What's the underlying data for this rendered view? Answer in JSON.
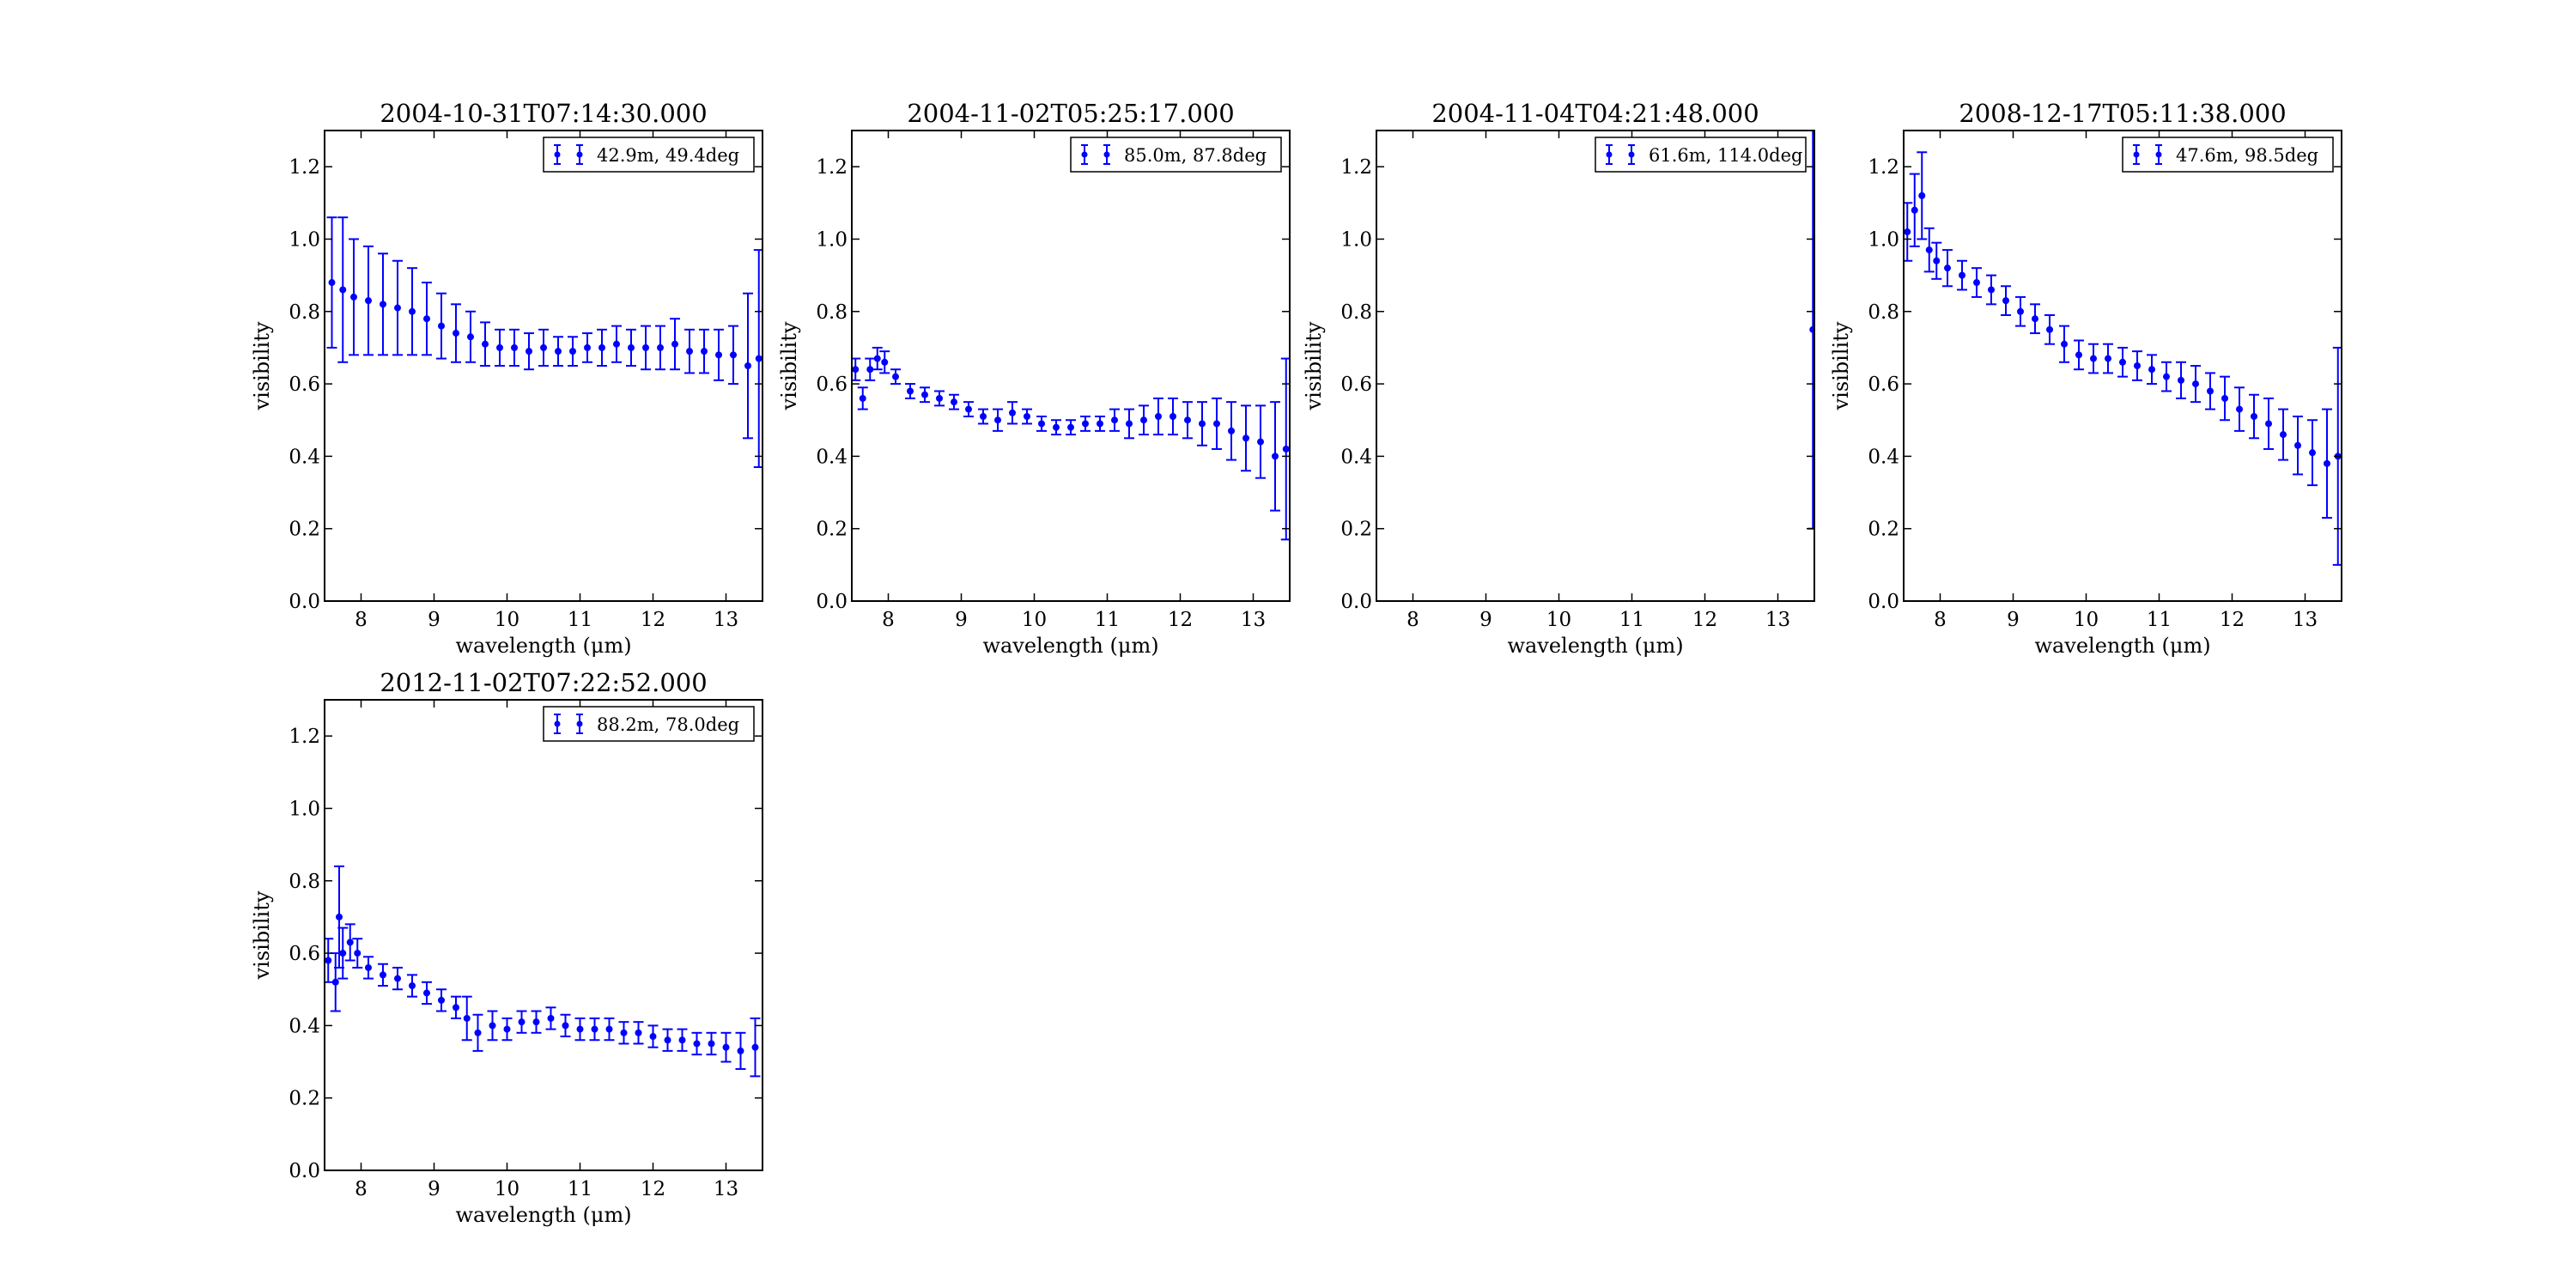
{
  "figure": {
    "background": "#ffffff"
  },
  "chart_data": [
    {
      "type": "scatter",
      "title": "2004-10-31T07:14:30.000",
      "xlabel": "wavelength (μm)",
      "ylabel": "visibility",
      "xlim": [
        7.5,
        13.5
      ],
      "ylim": [
        0.0,
        1.3
      ],
      "xticks": [
        "8",
        "9",
        "10",
        "11",
        "12",
        "13"
      ],
      "yticks": [
        "0.0",
        "0.2",
        "0.4",
        "0.6",
        "0.8",
        "1.0",
        "1.2"
      ],
      "legend": {
        "label": "42.9m, 49.4deg",
        "position": "top-right"
      },
      "color": "#0000ff",
      "series": [
        {
          "x": [
            7.6,
            7.75,
            7.9,
            8.1,
            8.3,
            8.5,
            8.7,
            8.9,
            9.1,
            9.3,
            9.5,
            9.7,
            9.9,
            10.1,
            10.3,
            10.5,
            10.7,
            10.9,
            11.1,
            11.3,
            11.5,
            11.7,
            11.9,
            12.1,
            12.3,
            12.5,
            12.7,
            12.9,
            13.1,
            13.3,
            13.45
          ],
          "y": [
            0.88,
            0.86,
            0.84,
            0.83,
            0.82,
            0.81,
            0.8,
            0.78,
            0.76,
            0.74,
            0.73,
            0.71,
            0.7,
            0.7,
            0.69,
            0.7,
            0.69,
            0.69,
            0.7,
            0.7,
            0.71,
            0.7,
            0.7,
            0.7,
            0.71,
            0.69,
            0.69,
            0.68,
            0.68,
            0.65,
            0.67
          ],
          "yerr": [
            0.18,
            0.2,
            0.16,
            0.15,
            0.14,
            0.13,
            0.12,
            0.1,
            0.09,
            0.08,
            0.07,
            0.06,
            0.05,
            0.05,
            0.05,
            0.05,
            0.04,
            0.04,
            0.04,
            0.05,
            0.05,
            0.05,
            0.06,
            0.06,
            0.07,
            0.06,
            0.06,
            0.07,
            0.08,
            0.2,
            0.3
          ]
        }
      ]
    },
    {
      "type": "scatter",
      "title": "2004-11-02T05:25:17.000",
      "xlabel": "wavelength (μm)",
      "ylabel": "visibility",
      "xlim": [
        7.5,
        13.5
      ],
      "ylim": [
        0.0,
        1.3
      ],
      "xticks": [
        "8",
        "9",
        "10",
        "11",
        "12",
        "13"
      ],
      "yticks": [
        "0.0",
        "0.2",
        "0.4",
        "0.6",
        "0.8",
        "1.0",
        "1.2"
      ],
      "legend": {
        "label": "85.0m, 87.8deg",
        "position": "top-right"
      },
      "color": "#0000ff",
      "series": [
        {
          "x": [
            7.55,
            7.65,
            7.75,
            7.85,
            7.95,
            8.1,
            8.3,
            8.5,
            8.7,
            8.9,
            9.1,
            9.3,
            9.5,
            9.7,
            9.9,
            10.1,
            10.3,
            10.5,
            10.7,
            10.9,
            11.1,
            11.3,
            11.5,
            11.7,
            11.9,
            12.1,
            12.3,
            12.5,
            12.7,
            12.9,
            13.1,
            13.3,
            13.45
          ],
          "y": [
            0.64,
            0.56,
            0.64,
            0.67,
            0.66,
            0.62,
            0.58,
            0.57,
            0.56,
            0.55,
            0.53,
            0.51,
            0.5,
            0.52,
            0.51,
            0.49,
            0.48,
            0.48,
            0.49,
            0.49,
            0.5,
            0.49,
            0.5,
            0.51,
            0.51,
            0.5,
            0.49,
            0.49,
            0.47,
            0.45,
            0.44,
            0.4,
            0.42
          ],
          "yerr": [
            0.03,
            0.03,
            0.03,
            0.03,
            0.03,
            0.02,
            0.02,
            0.02,
            0.02,
            0.02,
            0.02,
            0.02,
            0.03,
            0.03,
            0.02,
            0.02,
            0.02,
            0.02,
            0.02,
            0.02,
            0.03,
            0.04,
            0.04,
            0.05,
            0.05,
            0.05,
            0.06,
            0.07,
            0.08,
            0.09,
            0.1,
            0.15,
            0.25
          ]
        }
      ]
    },
    {
      "type": "scatter",
      "title": "2004-11-04T04:21:48.000",
      "xlabel": "wavelength (μm)",
      "ylabel": "visibility",
      "xlim": [
        7.5,
        13.5
      ],
      "ylim": [
        0.0,
        1.3
      ],
      "xticks": [
        "8",
        "9",
        "10",
        "11",
        "12",
        "13"
      ],
      "yticks": [
        "0.0",
        "0.2",
        "0.4",
        "0.6",
        "0.8",
        "1.0",
        "1.2"
      ],
      "legend": {
        "label": "61.6m, 114.0deg",
        "position": "top-right"
      },
      "color": "#0000ff",
      "series": [
        {
          "x": [
            13.48
          ],
          "y": [
            0.75
          ],
          "yerr": [
            0.55
          ]
        }
      ]
    },
    {
      "type": "scatter",
      "title": "2008-12-17T05:11:38.000",
      "xlabel": "wavelength (μm)",
      "ylabel": "visibility",
      "xlim": [
        7.5,
        13.5
      ],
      "ylim": [
        0.0,
        1.3
      ],
      "xticks": [
        "8",
        "9",
        "10",
        "11",
        "12",
        "13"
      ],
      "yticks": [
        "0.0",
        "0.2",
        "0.4",
        "0.6",
        "0.8",
        "1.0",
        "1.2"
      ],
      "legend": {
        "label": "47.6m, 98.5deg",
        "position": "top-right"
      },
      "color": "#0000ff",
      "series": [
        {
          "x": [
            7.55,
            7.65,
            7.75,
            7.85,
            7.95,
            8.1,
            8.3,
            8.5,
            8.7,
            8.9,
            9.1,
            9.3,
            9.5,
            9.7,
            9.9,
            10.1,
            10.3,
            10.5,
            10.7,
            10.9,
            11.1,
            11.3,
            11.5,
            11.7,
            11.9,
            12.1,
            12.3,
            12.5,
            12.7,
            12.9,
            13.1,
            13.3,
            13.45
          ],
          "y": [
            1.02,
            1.08,
            1.12,
            0.97,
            0.94,
            0.92,
            0.9,
            0.88,
            0.86,
            0.83,
            0.8,
            0.78,
            0.75,
            0.71,
            0.68,
            0.67,
            0.67,
            0.66,
            0.65,
            0.64,
            0.62,
            0.61,
            0.6,
            0.58,
            0.56,
            0.53,
            0.51,
            0.49,
            0.46,
            0.43,
            0.41,
            0.38,
            0.4
          ],
          "yerr": [
            0.08,
            0.1,
            0.12,
            0.06,
            0.05,
            0.05,
            0.04,
            0.04,
            0.04,
            0.04,
            0.04,
            0.04,
            0.04,
            0.05,
            0.04,
            0.04,
            0.04,
            0.04,
            0.04,
            0.04,
            0.04,
            0.05,
            0.05,
            0.05,
            0.06,
            0.06,
            0.06,
            0.07,
            0.07,
            0.08,
            0.09,
            0.15,
            0.3
          ]
        }
      ]
    },
    {
      "type": "scatter",
      "title": "2012-11-02T07:22:52.000",
      "xlabel": "wavelength (μm)",
      "ylabel": "visibility",
      "xlim": [
        7.5,
        13.5
      ],
      "ylim": [
        0.0,
        1.3
      ],
      "xticks": [
        "8",
        "9",
        "10",
        "11",
        "12",
        "13"
      ],
      "yticks": [
        "0.0",
        "0.2",
        "0.4",
        "0.6",
        "0.8",
        "1.0",
        "1.2"
      ],
      "legend": {
        "label": "88.2m, 78.0deg",
        "position": "top-right"
      },
      "color": "#0000ff",
      "series": [
        {
          "x": [
            7.55,
            7.65,
            7.7,
            7.75,
            7.85,
            7.95,
            8.1,
            8.3,
            8.5,
            8.7,
            8.9,
            9.1,
            9.3,
            9.45,
            9.6,
            9.8,
            10.0,
            10.2,
            10.4,
            10.6,
            10.8,
            11.0,
            11.2,
            11.4,
            11.6,
            11.8,
            12.0,
            12.2,
            12.4,
            12.6,
            12.8,
            13.0,
            13.2,
            13.4
          ],
          "y": [
            0.58,
            0.52,
            0.7,
            0.6,
            0.63,
            0.6,
            0.56,
            0.54,
            0.53,
            0.51,
            0.49,
            0.47,
            0.45,
            0.42,
            0.38,
            0.4,
            0.39,
            0.41,
            0.41,
            0.42,
            0.4,
            0.39,
            0.39,
            0.39,
            0.38,
            0.38,
            0.37,
            0.36,
            0.36,
            0.35,
            0.35,
            0.34,
            0.33,
            0.34
          ],
          "yerr": [
            0.06,
            0.08,
            0.14,
            0.07,
            0.05,
            0.04,
            0.03,
            0.03,
            0.03,
            0.03,
            0.03,
            0.03,
            0.03,
            0.06,
            0.05,
            0.04,
            0.03,
            0.03,
            0.03,
            0.03,
            0.03,
            0.03,
            0.03,
            0.03,
            0.03,
            0.03,
            0.03,
            0.03,
            0.03,
            0.03,
            0.03,
            0.04,
            0.05,
            0.08
          ]
        }
      ]
    }
  ]
}
